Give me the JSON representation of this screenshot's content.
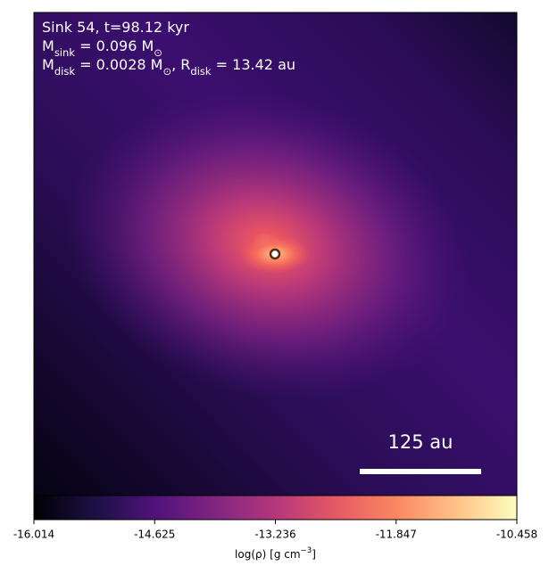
{
  "chart_data": {
    "type": "density-map",
    "colormap": "magma",
    "annotations": [
      [
        {
          "t": "Sink 54, t=98.12 kyr"
        }
      ],
      [
        {
          "t": "M"
        },
        {
          "t": "sink",
          "sub": true
        },
        {
          "t": " = 0.096 M"
        },
        {
          "t": "⊙",
          "sub": true
        }
      ],
      [
        {
          "t": "M"
        },
        {
          "t": "disk",
          "sub": true
        },
        {
          "t": " = 0.0028 M"
        },
        {
          "t": "⊙",
          "sub": true
        },
        {
          "t": ", R"
        },
        {
          "t": "disk",
          "sub": true
        },
        {
          "t": " = 13.42 au"
        }
      ]
    ],
    "scale_bar_label": "125 au",
    "colorbar": {
      "label": [
        {
          "t": "log(ρ) [g cm"
        },
        {
          "t": "−3",
          "sup": true
        },
        {
          "t": "]"
        }
      ],
      "lim": [
        -16.014,
        -10.458
      ],
      "ticks": [
        -16.014,
        -14.625,
        -13.236,
        -11.847,
        -10.458
      ]
    }
  }
}
